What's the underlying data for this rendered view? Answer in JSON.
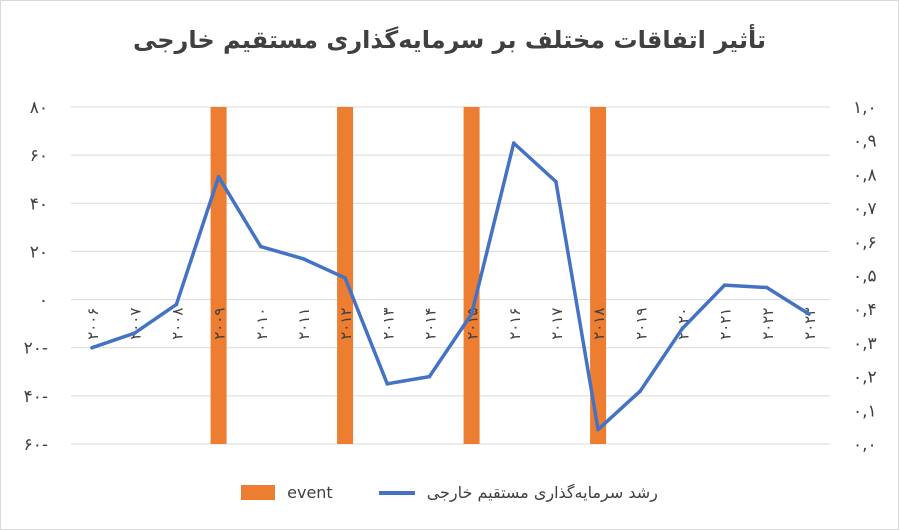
{
  "chart_data": {
    "type": "bar+line",
    "title": "تأثیر اتفاقات مختلف بر سرمایه‌گذاری مستقیم خارجی",
    "x": [
      "۲۰۰۶",
      "۲۰۰۷",
      "۲۰۰۸",
      "۲۰۰۹",
      "۲۰۱۰",
      "۲۰۱۱",
      "۲۰۱۲",
      "۲۰۱۳",
      "۲۰۱۴",
      "۲۰۱۵",
      "۲۰۱۶",
      "۲۰۱۷",
      "۲۰۱۸",
      "۲۰۱۹",
      "۲۰۲۰",
      "۲۰۲۱",
      "۲۰۲۲",
      "۲۰۲۳"
    ],
    "series": [
      {
        "name": "event",
        "type": "bar",
        "axis": "right",
        "color": "#ED7D31",
        "values": [
          0,
          0,
          0,
          1,
          0,
          0,
          1,
          0,
          0,
          1,
          0,
          0,
          1,
          0,
          0,
          0,
          0,
          0
        ]
      },
      {
        "name": "رشد سرمایه‌گذاری مستقیم خارجی",
        "type": "line",
        "axis": "left",
        "color": "#4472C4",
        "values": [
          -20,
          -14,
          -2,
          51,
          22,
          17,
          9,
          -35,
          -32,
          -6,
          65,
          49,
          -54,
          -38,
          -12,
          6,
          5,
          -6
        ]
      }
    ],
    "y_left": {
      "ylim": [
        -60,
        80
      ],
      "ticks": [
        -60,
        -40,
        -20,
        0,
        20,
        40,
        60,
        80
      ],
      "tick_labels": [
        "۶۰-",
        "۴۰-",
        "۲۰-",
        "۰",
        "۲۰",
        "۴۰",
        "۶۰",
        "۸۰"
      ]
    },
    "y_right": {
      "ylim": [
        0,
        1.0
      ],
      "ticks": [
        0,
        0.1,
        0.2,
        0.3,
        0.4,
        0.5,
        0.6,
        0.7,
        0.8,
        0.9,
        1.0
      ],
      "tick_labels": [
        "۰,۰",
        "۰,۱",
        "۰,۲",
        "۰,۳",
        "۰,۴",
        "۰,۵",
        "۰,۶",
        "۰,۷",
        "۰,۸",
        "۰,۹",
        "۱,۰"
      ]
    },
    "grid": true,
    "legend": "bottom"
  }
}
